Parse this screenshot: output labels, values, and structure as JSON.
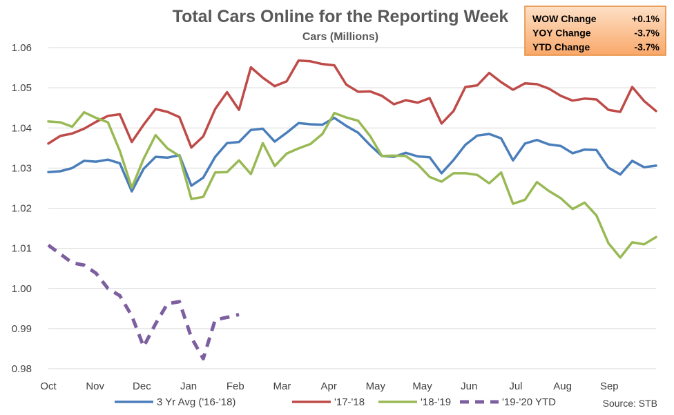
{
  "chart_data": {
    "type": "line",
    "title": "Total Cars Online for the Reporting Week",
    "subtitle": "Cars (Millions)",
    "source": "Source:  STB",
    "ylim": [
      0.98,
      1.06
    ],
    "ytick_step": 0.01,
    "ytick_labels": [
      "0.98",
      "0.99",
      "1.00",
      "1.01",
      "1.02",
      "1.03",
      "1.04",
      "1.05",
      "1.06"
    ],
    "grid": true,
    "legend_position": "bottom",
    "month_labels": [
      "Oct",
      "Nov",
      "Dec",
      "Jan",
      "Feb",
      "Mar",
      "Apr",
      "May",
      "May",
      "Jun",
      "Jul",
      "Aug",
      "Sep"
    ],
    "changes": [
      {
        "label": "WOW Change",
        "value": "+0.1%"
      },
      {
        "label": "YOY Change",
        "value": "-3.7%"
      },
      {
        "label": "YTD Change",
        "value": "-3.7%"
      }
    ],
    "series": [
      {
        "name": "3 Yr Avg ('16-'18)",
        "color": "#4a7ebb",
        "dash": false,
        "values": [
          1.029,
          1.0292,
          1.03,
          1.0318,
          1.0316,
          1.0321,
          1.0312,
          1.0242,
          1.0298,
          1.0328,
          1.0326,
          1.0332,
          1.0256,
          1.0276,
          1.0328,
          1.0362,
          1.0365,
          1.0395,
          1.0398,
          1.0366,
          1.0388,
          1.0412,
          1.0409,
          1.0408,
          1.0425,
          1.0405,
          1.0388,
          1.0357,
          1.033,
          1.0328,
          1.0338,
          1.0329,
          1.0327,
          1.0287,
          1.032,
          1.0358,
          1.0381,
          1.0385,
          1.0374,
          1.0319,
          1.0361,
          1.037,
          1.0359,
          1.0355,
          1.0337,
          1.0346,
          1.0345,
          1.0301,
          1.0284,
          1.0318,
          1.0302,
          1.0306
        ]
      },
      {
        "name": "'17-'18",
        "color": "#be4b48",
        "dash": false,
        "values": [
          1.0361,
          1.038,
          1.0386,
          1.0398,
          1.0415,
          1.043,
          1.0434,
          1.0365,
          1.0408,
          1.0447,
          1.044,
          1.0427,
          1.0351,
          1.0379,
          1.0447,
          1.0489,
          1.0445,
          1.0551,
          1.0525,
          1.0504,
          1.0516,
          1.0568,
          1.0566,
          1.0559,
          1.0556,
          1.0508,
          1.049,
          1.0491,
          1.048,
          1.0459,
          1.0469,
          1.0463,
          1.0474,
          1.0411,
          1.0442,
          1.0502,
          1.0506,
          1.0537,
          1.0514,
          1.0495,
          1.0511,
          1.0509,
          1.0498,
          1.048,
          1.0468,
          1.0473,
          1.0471,
          1.0445,
          1.044,
          1.0502,
          1.0467,
          1.0442
        ]
      },
      {
        "name": "'18-'19",
        "color": "#98b954",
        "dash": false,
        "values": [
          1.0416,
          1.0414,
          1.0403,
          1.0439,
          1.0425,
          1.0414,
          1.0343,
          1.0251,
          1.0323,
          1.0382,
          1.0349,
          1.033,
          1.0223,
          1.0228,
          1.0289,
          1.029,
          1.0319,
          1.0285,
          1.0362,
          1.0305,
          1.0336,
          1.0349,
          1.036,
          1.0385,
          1.0437,
          1.0426,
          1.0418,
          1.038,
          1.033,
          1.0331,
          1.033,
          1.0309,
          1.0278,
          1.0266,
          1.0287,
          1.0287,
          1.0283,
          1.0262,
          1.0289,
          1.0211,
          1.0221,
          1.0265,
          1.0243,
          1.0225,
          1.0198,
          1.0214,
          1.0182,
          1.0113,
          1.0077,
          1.0115,
          1.011,
          1.0128
        ]
      },
      {
        "name": "'19-'20 YTD",
        "color": "#7d5fa0",
        "dash": true,
        "values": [
          1.0108,
          1.0086,
          1.0064,
          1.0058,
          1.0038,
          1.0,
          0.9982,
          0.9932,
          0.9855,
          0.9912,
          0.9962,
          0.9967,
          0.9878,
          0.9825,
          0.9922,
          0.9928,
          0.9935
        ]
      }
    ]
  }
}
